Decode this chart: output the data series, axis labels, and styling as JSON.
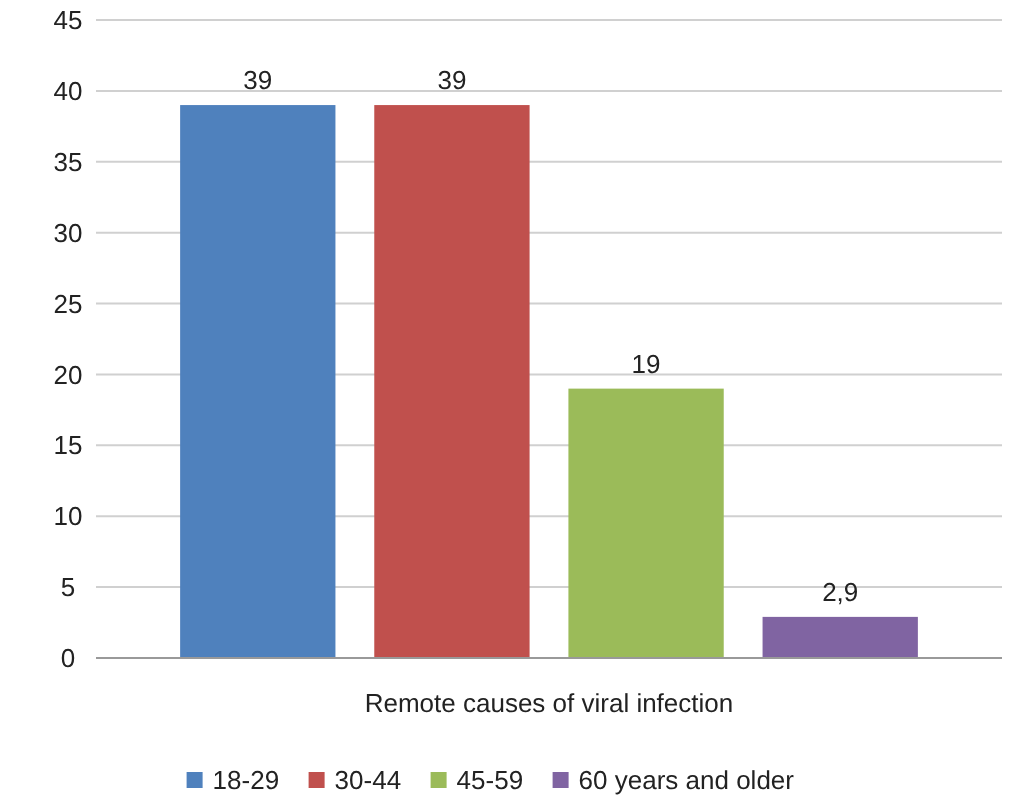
{
  "chart_data": {
    "type": "bar",
    "categories": [
      "Remote causes of viral infection"
    ],
    "series": [
      {
        "name": "18-29",
        "color": "#4f81bd",
        "values": [
          39
        ],
        "value_labels": [
          "39"
        ]
      },
      {
        "name": "30-44",
        "color": "#c0504d",
        "values": [
          39
        ],
        "value_labels": [
          "39"
        ]
      },
      {
        "name": "45-59",
        "color": "#9bbb59",
        "values": [
          19
        ],
        "value_labels": [
          "19"
        ]
      },
      {
        "name": "60 years and older",
        "color": "#8064a2",
        "values": [
          2.9
        ],
        "value_labels": [
          "2,9"
        ]
      }
    ],
    "ylim": [
      0,
      45
    ],
    "yticks": [
      0,
      5,
      10,
      15,
      20,
      25,
      30,
      35,
      40,
      45
    ],
    "grid": "y",
    "legend": "bottom"
  }
}
